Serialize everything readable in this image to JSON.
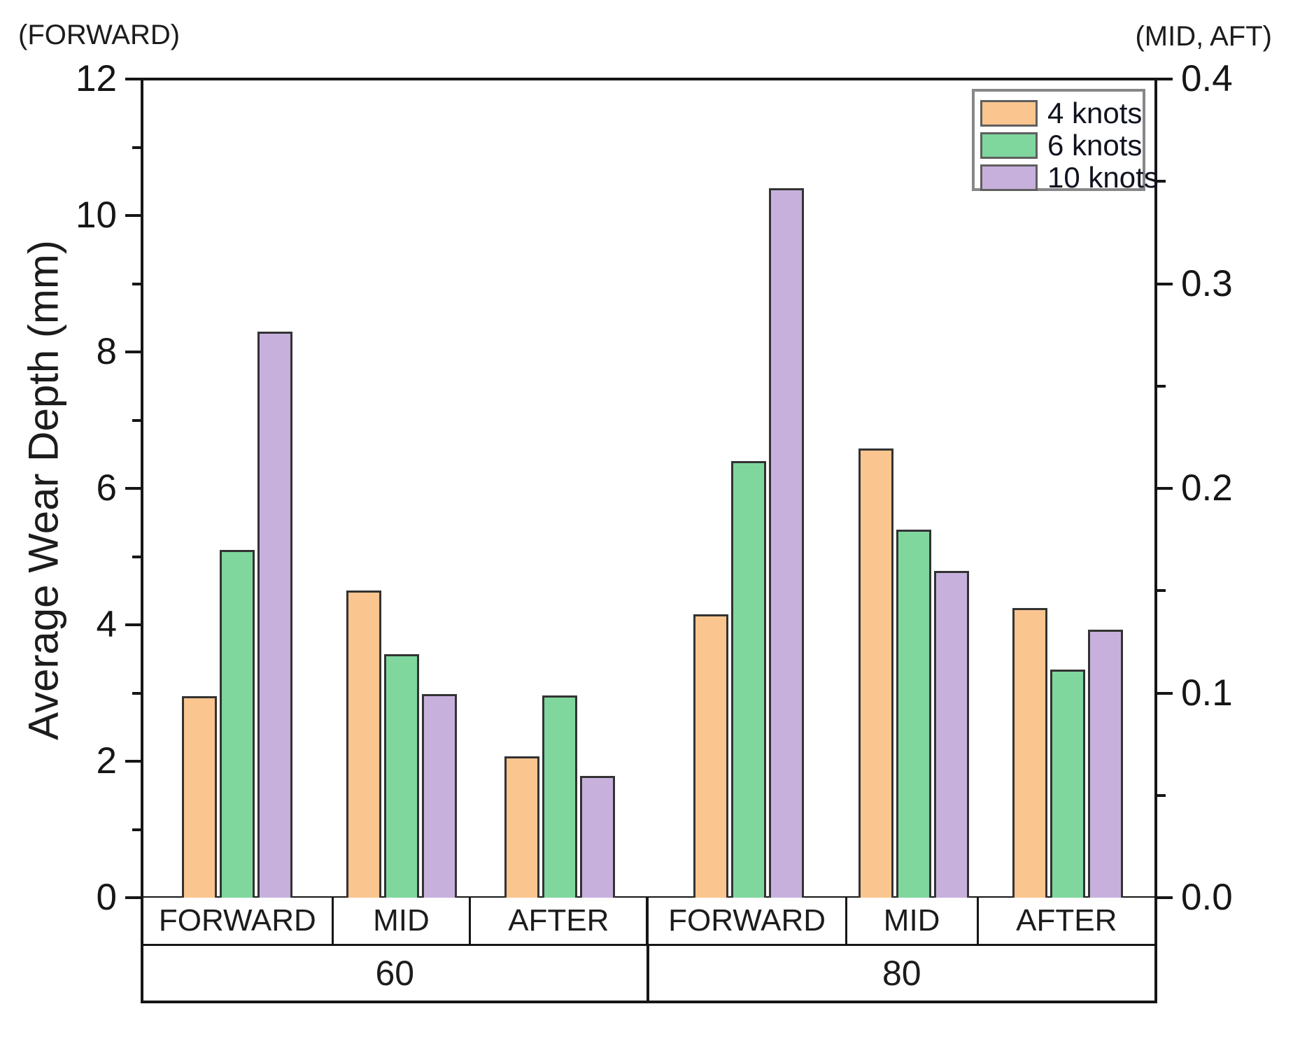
{
  "figure": {
    "top_left_context_label": "(FORWARD)",
    "top_right_context_label": "(MID, AFT)",
    "y_axis_label": "Average Wear Depth (mm)"
  },
  "legend": {
    "position": "top-right",
    "items": [
      {
        "label": "4 knots",
        "color": "#FAC58F"
      },
      {
        "label": "6 knots",
        "color": "#7FD79E"
      },
      {
        "label": "10 knots",
        "color": "#C7B1DC"
      }
    ]
  },
  "chart_data": {
    "type": "bar",
    "title": "",
    "left_axis": {
      "context_label": "(FORWARD)",
      "axis_label": "Average Wear Depth (mm)",
      "tick_labels": [
        "0",
        "2",
        "4",
        "6",
        "8",
        "10",
        "12"
      ],
      "range": [
        0,
        12
      ],
      "minor_ticks_at": [
        1,
        3,
        5,
        7,
        9,
        11
      ],
      "applies_to": [
        "FORWARD"
      ]
    },
    "right_axis": {
      "context_label": "(MID, AFT)",
      "tick_labels": [
        "0.0",
        "0.1",
        "0.2",
        "0.3",
        "0.4"
      ],
      "range": [
        0,
        0.4
      ],
      "minor_ticks_at": [
        0.05,
        0.15,
        0.25,
        0.35
      ],
      "applies_to": [
        "MID",
        "AFTER"
      ]
    },
    "series": [
      "4 knots",
      "6 knots",
      "10 knots"
    ],
    "x_row_positions": [
      "FORWARD",
      "MID",
      "AFTER",
      "FORWARD",
      "MID",
      "AFTER"
    ],
    "x_row_groups": [
      "60",
      "80"
    ],
    "legend_entries": [
      "4 knots",
      "6 knots",
      "10 knots"
    ],
    "groups": [
      {
        "speed": "60",
        "position": "FORWARD",
        "axis": "left",
        "values": [
          3.0,
          5.1,
          8.3
        ],
        "unit": "mm",
        "plot_heights_left_scale": [
          2.95,
          5.1,
          8.3
        ]
      },
      {
        "speed": "60",
        "position": "MID",
        "axis": "right",
        "values": [
          0.15,
          0.12,
          0.1
        ],
        "unit": "mm",
        "plot_heights_left_scale": [
          4.5,
          3.57,
          2.98
        ]
      },
      {
        "speed": "60",
        "position": "AFTER",
        "axis": "right",
        "values": [
          0.07,
          0.1,
          0.06
        ],
        "unit": "mm",
        "plot_heights_left_scale": [
          2.07,
          2.96,
          1.78
        ]
      },
      {
        "speed": "80",
        "position": "FORWARD",
        "axis": "left",
        "values": [
          4.15,
          6.4,
          10.4
        ],
        "unit": "mm",
        "plot_heights_left_scale": [
          4.15,
          6.4,
          10.4
        ]
      },
      {
        "speed": "80",
        "position": "MID",
        "axis": "right",
        "values": [
          0.22,
          0.18,
          0.16
        ],
        "unit": "mm",
        "plot_heights_left_scale": [
          6.58,
          5.4,
          4.79
        ]
      },
      {
        "speed": "80",
        "position": "AFTER",
        "axis": "right",
        "values": [
          0.14,
          0.11,
          0.13
        ],
        "unit": "mm",
        "plot_heights_left_scale": [
          4.25,
          3.34,
          3.93
        ]
      }
    ]
  }
}
